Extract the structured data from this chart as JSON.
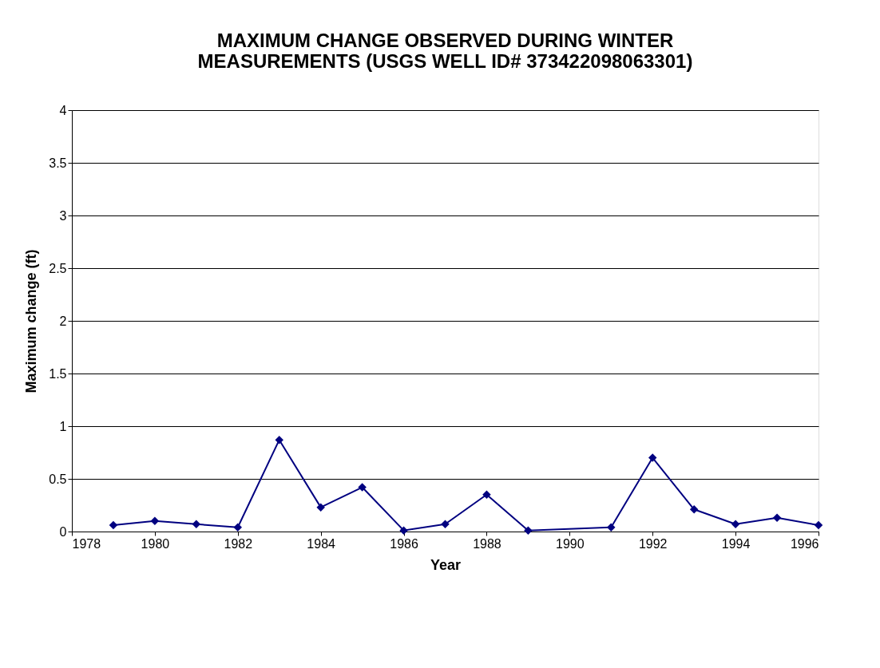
{
  "chart_data": {
    "type": "line",
    "title": [
      "MAXIMUM CHANGE OBSERVED DURING WINTER",
      "MEASUREMENTS (USGS WELL ID# 373422098063301)"
    ],
    "xlabel": "Year",
    "ylabel": "Maximum change (ft)",
    "x": [
      1979,
      1980,
      1981,
      1982,
      1983,
      1984,
      1985,
      1986,
      1987,
      1988,
      1989,
      1991,
      1992,
      1993,
      1994,
      1995,
      1996
    ],
    "series": [
      {
        "color": "#000080",
        "values": [
          0.06,
          0.1,
          0.07,
          0.04,
          0.87,
          0.23,
          0.42,
          0.01,
          0.07,
          0.35,
          0.01,
          0.04,
          0.7,
          0.21,
          0.07,
          0.13,
          0.06
        ]
      }
    ],
    "xlim": [
      1978,
      1996
    ],
    "xticks": [
      1978,
      1980,
      1982,
      1984,
      1986,
      1988,
      1990,
      1992,
      1994,
      1996
    ],
    "ylim": [
      0,
      4
    ],
    "yticks": [
      0,
      0.5,
      1,
      1.5,
      2,
      2.5,
      3,
      3.5,
      4
    ],
    "grid": "y",
    "marker": "diamond",
    "line_style": "solid"
  }
}
